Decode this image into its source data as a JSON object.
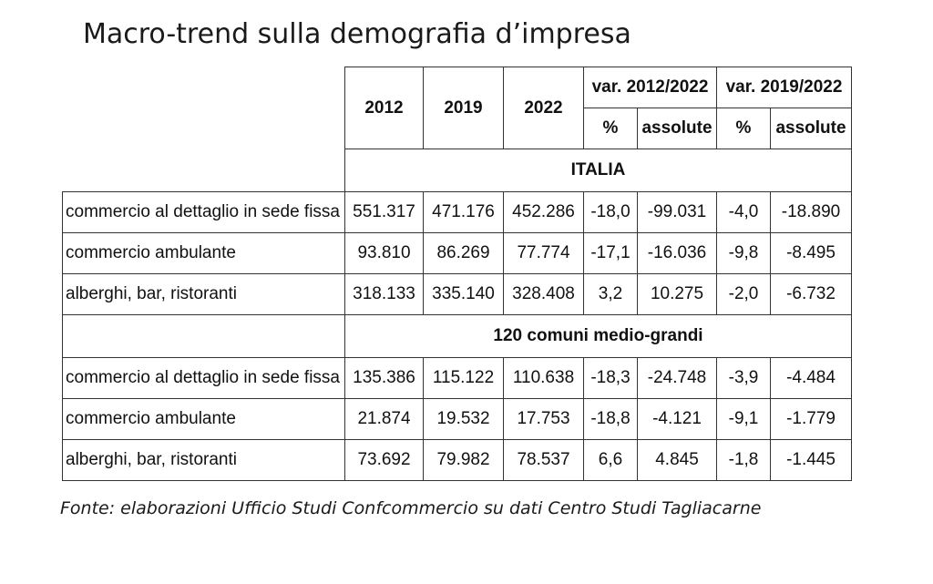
{
  "title": "Macro-trend sulla demografia d’impresa",
  "source": "Fonte: elaborazioni Ufficio Studi Confcommercio su dati Centro Studi Tagliacarne",
  "table": {
    "headers": {
      "y2012": "2012",
      "y2019": "2019",
      "y2022": "2022",
      "var1": "var. 2012/2022",
      "var2": "var. 2019/2022",
      "pct1": "%",
      "abs1": "assolute",
      "pct2": "%",
      "abs2": "assolute"
    },
    "sections": [
      {
        "name": "ITALIA",
        "rows": [
          {
            "label": "commercio al dettaglio in sede fissa",
            "v2012": "551.317",
            "v2019": "471.176",
            "v2022": "452.286",
            "pct1": "-18,0",
            "abs1": "-99.031",
            "pct2": "-4,0",
            "abs2": "-18.890"
          },
          {
            "label": "commercio ambulante",
            "v2012": "93.810",
            "v2019": "86.269",
            "v2022": "77.774",
            "pct1": "-17,1",
            "abs1": "-16.036",
            "pct2": "-9,8",
            "abs2": "-8.495"
          },
          {
            "label": "alberghi, bar, ristoranti",
            "v2012": "318.133",
            "v2019": "335.140",
            "v2022": "328.408",
            "pct1": "3,2",
            "abs1": "10.275",
            "pct2": "-2,0",
            "abs2": "-6.732"
          }
        ]
      },
      {
        "name": "120 comuni medio-grandi",
        "rows": [
          {
            "label": "commercio al dettaglio in sede fissa",
            "v2012": "135.386",
            "v2019": "115.122",
            "v2022": "110.638",
            "pct1": "-18,3",
            "abs1": "-24.748",
            "pct2": "-3,9",
            "abs2": "-4.484"
          },
          {
            "label": "commercio ambulante",
            "v2012": "21.874",
            "v2019": "19.532",
            "v2022": "17.753",
            "pct1": "-18,8",
            "abs1": "-4.121",
            "pct2": "-9,1",
            "abs2": "-1.779"
          },
          {
            "label": "alberghi, bar, ristoranti",
            "v2012": "73.692",
            "v2019": "79.982",
            "v2022": "78.537",
            "pct1": "6,6",
            "abs1": "4.845",
            "pct2": "-1,8",
            "abs2": "-1.445"
          }
        ]
      }
    ]
  }
}
